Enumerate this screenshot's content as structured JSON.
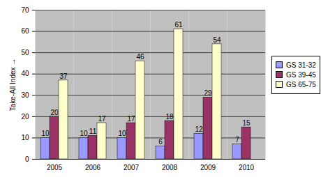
{
  "chart_data": {
    "type": "bar",
    "categories": [
      "2005",
      "2006",
      "2007",
      "2008",
      "2009",
      "2010"
    ],
    "series": [
      {
        "name": "GS 31-32",
        "color": "#9999ff",
        "values": [
          10,
          10,
          10,
          6,
          12,
          7
        ]
      },
      {
        "name": "GS 39-45",
        "color": "#993366",
        "values": [
          20,
          11,
          17,
          18,
          29,
          15
        ]
      },
      {
        "name": "GS 65-75",
        "color": "#ffffcc",
        "values": [
          37,
          17,
          46,
          61,
          54,
          null
        ]
      }
    ],
    "ylabel": "Take-All Index",
    "ylim": [
      0,
      70
    ],
    "yticks": [
      0,
      10,
      20,
      30,
      40,
      50,
      60,
      70
    ],
    "grid": true,
    "legend": "right",
    "data_labels": true
  }
}
